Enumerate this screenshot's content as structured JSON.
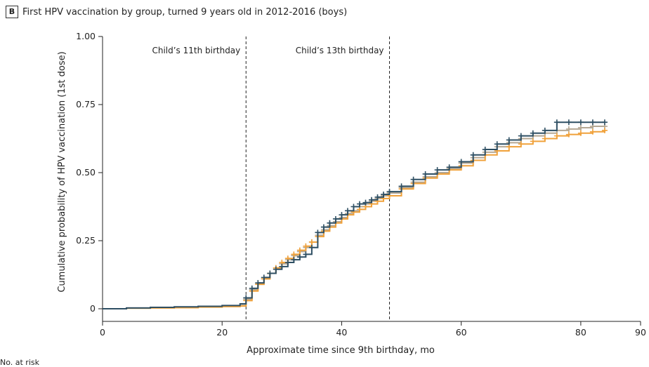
{
  "panel": {
    "letter": "B",
    "title": "First HPV vaccination by group, turned 9 years old in 2012-2016 (boys)"
  },
  "footer_text": "No. at risk",
  "colors": {
    "series_dark": "#2e4f63",
    "series_gray": "#b5a894",
    "series_orange": "#f0a13a",
    "axis": "#222222",
    "reference_line": "#222222"
  },
  "chart_data": {
    "type": "line",
    "title": "",
    "xlabel": "Approximate time since 9th birthday, mo",
    "ylabel": "Cumulative probability of HPV vaccination (1st dose)",
    "xlim": [
      0,
      90
    ],
    "ylim": [
      0,
      1.0
    ],
    "x_ticks": [
      0,
      20,
      40,
      60,
      80,
      90
    ],
    "y_ticks": [
      0,
      0.25,
      0.5,
      0.75,
      1.0
    ],
    "y_tick_labels": [
      "0",
      "0.25",
      "0.50",
      "0.75",
      "1.00"
    ],
    "grid": false,
    "reference_lines": [
      {
        "x": 24,
        "label": "Child’s 11th birthday"
      },
      {
        "x": 48,
        "label": "Child’s 13th birthday"
      }
    ],
    "series": [
      {
        "color_key": "series_gray",
        "x": [
          0,
          4,
          8,
          12,
          16,
          20,
          23,
          24,
          25,
          26,
          27,
          28,
          29,
          30,
          31,
          32,
          33,
          34,
          35,
          36,
          37,
          38,
          39,
          40,
          41,
          42,
          43,
          44,
          45,
          46,
          47,
          48,
          50,
          52,
          54,
          56,
          58,
          60,
          62,
          64,
          66,
          68,
          70,
          72,
          74,
          76,
          78,
          80,
          82,
          84
        ],
        "y": [
          0,
          0.003,
          0.005,
          0.006,
          0.008,
          0.01,
          0.012,
          0.035,
          0.07,
          0.09,
          0.11,
          0.13,
          0.15,
          0.165,
          0.18,
          0.195,
          0.21,
          0.225,
          0.245,
          0.27,
          0.29,
          0.305,
          0.32,
          0.335,
          0.35,
          0.36,
          0.375,
          0.385,
          0.395,
          0.405,
          0.415,
          0.425,
          0.445,
          0.465,
          0.485,
          0.5,
          0.515,
          0.535,
          0.555,
          0.575,
          0.595,
          0.61,
          0.625,
          0.635,
          0.645,
          0.655,
          0.66,
          0.665,
          0.67,
          0.67
        ],
        "markers_from": 24
      },
      {
        "color_key": "series_orange",
        "x": [
          0,
          4,
          8,
          12,
          16,
          20,
          23,
          24,
          25,
          26,
          27,
          28,
          29,
          30,
          31,
          32,
          33,
          34,
          35,
          36,
          37,
          38,
          39,
          40,
          41,
          42,
          43,
          44,
          45,
          46,
          47,
          48,
          50,
          52,
          54,
          56,
          58,
          60,
          62,
          64,
          66,
          68,
          70,
          72,
          74,
          76,
          78,
          80,
          82,
          84
        ],
        "y": [
          0,
          0.002,
          0.003,
          0.004,
          0.006,
          0.008,
          0.01,
          0.03,
          0.065,
          0.09,
          0.11,
          0.13,
          0.15,
          0.17,
          0.185,
          0.2,
          0.215,
          0.23,
          0.245,
          0.265,
          0.285,
          0.3,
          0.315,
          0.33,
          0.345,
          0.355,
          0.365,
          0.375,
          0.385,
          0.395,
          0.405,
          0.415,
          0.44,
          0.46,
          0.48,
          0.495,
          0.51,
          0.525,
          0.545,
          0.565,
          0.58,
          0.595,
          0.605,
          0.615,
          0.625,
          0.635,
          0.64,
          0.645,
          0.65,
          0.655
        ],
        "markers_from": 24
      },
      {
        "color_key": "series_dark",
        "x": [
          0,
          4,
          8,
          12,
          16,
          20,
          23,
          24,
          25,
          26,
          27,
          28,
          29,
          30,
          31,
          32,
          33,
          34,
          35,
          36,
          37,
          38,
          39,
          40,
          41,
          42,
          43,
          44,
          45,
          46,
          47,
          48,
          50,
          52,
          54,
          56,
          58,
          60,
          62,
          64,
          66,
          68,
          70,
          72,
          74,
          76,
          78,
          80,
          82,
          84
        ],
        "y": [
          0,
          0.003,
          0.005,
          0.007,
          0.009,
          0.012,
          0.018,
          0.04,
          0.075,
          0.095,
          0.115,
          0.13,
          0.145,
          0.155,
          0.17,
          0.18,
          0.19,
          0.2,
          0.225,
          0.28,
          0.3,
          0.315,
          0.33,
          0.345,
          0.36,
          0.375,
          0.385,
          0.39,
          0.4,
          0.41,
          0.42,
          0.43,
          0.45,
          0.475,
          0.495,
          0.51,
          0.52,
          0.54,
          0.565,
          0.585,
          0.605,
          0.62,
          0.635,
          0.645,
          0.655,
          0.685,
          0.685,
          0.685,
          0.685,
          0.685
        ],
        "markers_from": 24
      }
    ]
  }
}
